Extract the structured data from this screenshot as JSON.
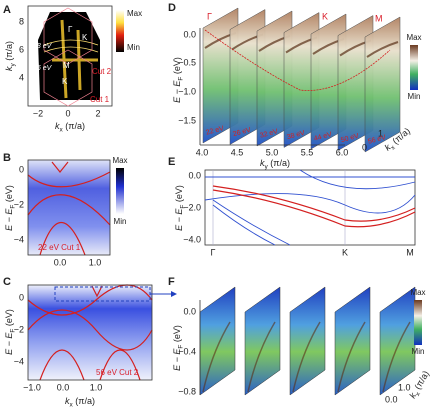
{
  "panels": {
    "A": {
      "label": "A",
      "x_label": {
        "main": "k",
        "sub": "x",
        "unit": " (π/a)"
      },
      "y_label": {
        "main": "k",
        "sub": "y",
        "unit": " (π/a)"
      },
      "xticks": [
        "−2",
        "0",
        "2"
      ],
      "yticks": [
        "8",
        "6",
        "4"
      ],
      "colorbar": [
        "Max",
        "Min"
      ],
      "annotations": [
        "Γ",
        "K",
        "M",
        "K",
        "78 eV",
        "56 eV",
        "Cut 2",
        "Cut 1"
      ]
    },
    "B": {
      "label": "B",
      "y_label": {
        "main": "E − E",
        "sub": "F",
        "unit": " (eV)"
      },
      "xticks": [
        "0.0",
        "1.0"
      ],
      "yticks": [
        "0",
        "−2",
        "−4"
      ],
      "colorbar": [
        "Max",
        "Min"
      ],
      "annotations": [
        "22 eV Cut 1"
      ]
    },
    "C": {
      "label": "C",
      "x_label": {
        "main": "k",
        "sub": "x",
        "unit": " (π/a)"
      },
      "y_label": {
        "main": "E − E",
        "sub": "F",
        "unit": " (eV)"
      },
      "xticks": [
        "−1.0",
        "0.0",
        "1.0"
      ],
      "yticks": [
        "0",
        "−2",
        "−4"
      ],
      "annotations": [
        "56 eV Cut 2"
      ]
    },
    "D": {
      "label": "D",
      "x_label": {
        "main": "k",
        "sub": "y",
        "unit": " (π/a)"
      },
      "z_label": {
        "main": "k",
        "sub": "x",
        "unit": " (π/a)"
      },
      "y_label": {
        "main": "E − E",
        "sub": "F",
        "unit": " (eV)"
      },
      "xticks": [
        "4.0",
        "4.5",
        "5.0",
        "5.5",
        "6.0"
      ],
      "yticks": [
        "0.0",
        "−0.5",
        "−1.0",
        "−1.5"
      ],
      "zticks": [
        "0",
        "1"
      ],
      "colorbar": [
        "Max",
        "Min"
      ],
      "points": [
        "Γ",
        "K",
        "M"
      ],
      "energies": [
        "22 eV",
        "26 eV",
        "32 eV",
        "38 eV",
        "44 eV",
        "50 eV",
        "56 eV"
      ]
    },
    "E": {
      "label": "E",
      "y_label": {
        "main": "E − E",
        "sub": "F",
        "unit": " (eV)"
      },
      "xticks": [
        "Γ",
        "K",
        "M"
      ],
      "yticks": [
        "0.0",
        "−2.0",
        "−4.0"
      ]
    },
    "F": {
      "label": "F",
      "y_label": {
        "main": "E − E",
        "sub": "F",
        "unit": " (eV)"
      },
      "z_label": {
        "main": "k",
        "sub": "x",
        "unit": " (π/a)"
      },
      "yticks": [
        "0.0",
        "−0.4",
        "−0.8"
      ],
      "zticks": [
        "0.0",
        "1.0"
      ],
      "colorbar": [
        "Max",
        "Min"
      ]
    }
  }
}
